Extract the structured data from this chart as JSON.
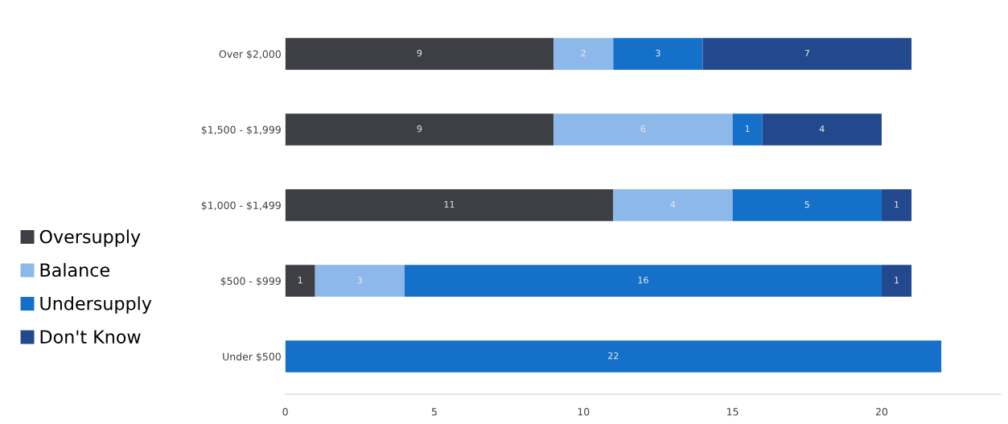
{
  "chart_data": {
    "type": "bar",
    "orientation": "horizontal",
    "stacked": true,
    "categories": [
      "Over $2,000",
      "$1,500 - $1,999",
      "$1,000 - $1,499",
      "$500 - $999",
      "Under $500"
    ],
    "series": [
      {
        "name": "Oversupply",
        "color": "#3d3f45",
        "values": [
          9,
          9,
          11,
          1,
          null
        ]
      },
      {
        "name": "Balance",
        "color": "#8db8ea",
        "values": [
          2,
          6,
          4,
          3,
          null
        ]
      },
      {
        "name": "Undersupply",
        "color": "#1470c8",
        "values": [
          3,
          1,
          5,
          16,
          22
        ]
      },
      {
        "name": "Don't Know",
        "color": "#22488e",
        "values": [
          7,
          4,
          1,
          1,
          null
        ]
      }
    ],
    "xlim": [
      0,
      24
    ],
    "xticks": [
      0,
      5,
      10,
      15,
      20
    ],
    "grid": false,
    "legend": "left",
    "data_labels": true
  }
}
